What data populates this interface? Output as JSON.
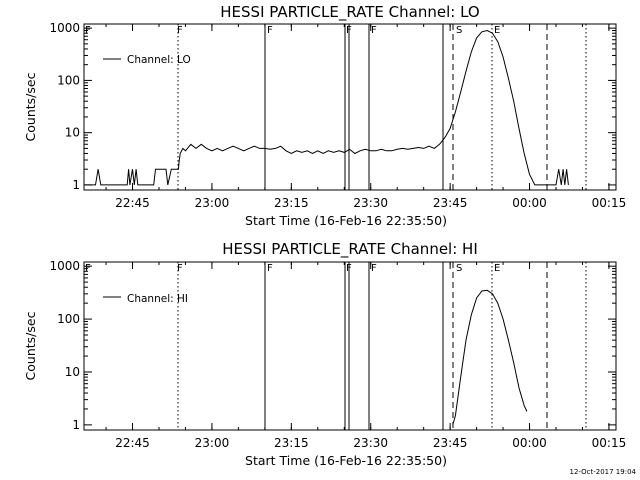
{
  "chart_data": [
    {
      "type": "line",
      "title": "HESSI PARTICLE_RATE Channel: LO",
      "xlabel": "Start Time (16-Feb-16 22:35:50)",
      "ylabel": "Counts/sec",
      "yscale": "log",
      "ylim": [
        0.8,
        1200
      ],
      "xlim_minutes_from_start": [
        0,
        100.5
      ],
      "x_tick_labels": [
        "22:45",
        "23:00",
        "23:15",
        "23:30",
        "23:45",
        "00:00",
        "00:15"
      ],
      "y_tick_labels": [
        "1",
        "10",
        "100",
        "1000"
      ],
      "legend": [
        "Channel: LO"
      ],
      "legend_position": "top-left",
      "event_markers": [
        {
          "label": "F",
          "style": "solid"
        },
        {
          "label": "F",
          "style": "solid"
        },
        {
          "label": "F",
          "style": "solid"
        },
        {
          "label": "S",
          "style": "dashed"
        },
        {
          "label": "E",
          "style": "dotted"
        }
      ],
      "series": [
        {
          "name": "Channel: LO",
          "points": [
            [
              "22:36:00",
              1
            ],
            [
              "22:37:00",
              1
            ],
            [
              "22:38:00",
              1
            ],
            [
              "22:38:30",
              2
            ],
            [
              "22:39:00",
              1
            ],
            [
              "22:44:00",
              1
            ],
            [
              "22:44:15",
              2
            ],
            [
              "22:44:30",
              1
            ],
            [
              "22:45:00",
              2
            ],
            [
              "22:45:20",
              1
            ],
            [
              "22:45:40",
              2
            ],
            [
              "22:46:00",
              1
            ],
            [
              "22:49:00",
              1
            ],
            [
              "22:49:20",
              2
            ],
            [
              "22:51:20",
              2
            ],
            [
              "22:51:40",
              1
            ],
            [
              "22:52:20",
              2
            ],
            [
              "22:53:40",
              2
            ],
            [
              "22:53:50",
              3
            ],
            [
              "22:54:00",
              4
            ],
            [
              "22:54:30",
              5
            ],
            [
              "22:55:00",
              4.5
            ],
            [
              "22:56:00",
              6
            ],
            [
              "22:57:00",
              5
            ],
            [
              "22:58:00",
              6
            ],
            [
              "22:59:00",
              5
            ],
            [
              "23:00:00",
              4.5
            ],
            [
              "23:01:00",
              5
            ],
            [
              "23:02:00",
              4.5
            ],
            [
              "23:03:00",
              5
            ],
            [
              "23:04:00",
              5.5
            ],
            [
              "23:05:00",
              5
            ],
            [
              "23:06:00",
              4.5
            ],
            [
              "23:07:00",
              5
            ],
            [
              "23:08:00",
              5.5
            ],
            [
              "23:09:00",
              5
            ],
            [
              "23:10:00",
              5
            ],
            [
              "23:11:00",
              4.8
            ],
            [
              "23:12:00",
              5
            ],
            [
              "23:13:00",
              5.5
            ],
            [
              "23:14:00",
              4.5
            ],
            [
              "23:15:00",
              4
            ],
            [
              "23:16:00",
              4.5
            ],
            [
              "23:17:00",
              4.2
            ],
            [
              "23:18:00",
              4.5
            ],
            [
              "23:19:00",
              4
            ],
            [
              "23:20:00",
              4.5
            ],
            [
              "23:21:00",
              4
            ],
            [
              "23:22:00",
              4.5
            ],
            [
              "23:23:00",
              4.2
            ],
            [
              "23:24:00",
              4.5
            ],
            [
              "23:25:00",
              4.2
            ],
            [
              "23:26:00",
              4.8
            ],
            [
              "23:27:00",
              4
            ],
            [
              "23:28:00",
              4.5
            ],
            [
              "23:29:00",
              4.8
            ],
            [
              "23:30:00",
              4.5
            ],
            [
              "23:31:00",
              4.5
            ],
            [
              "23:32:00",
              4.8
            ],
            [
              "23:33:00",
              4.5
            ],
            [
              "23:34:00",
              4.5
            ],
            [
              "23:35:00",
              4.8
            ],
            [
              "23:36:00",
              5
            ],
            [
              "23:37:00",
              4.8
            ],
            [
              "23:38:00",
              5
            ],
            [
              "23:39:00",
              5.2
            ],
            [
              "23:40:00",
              5
            ],
            [
              "23:41:00",
              5.5
            ],
            [
              "23:42:00",
              5
            ],
            [
              "23:43:00",
              6
            ],
            [
              "23:44:00",
              8
            ],
            [
              "23:45:00",
              12
            ],
            [
              "23:46:00",
              25
            ],
            [
              "23:47:00",
              60
            ],
            [
              "23:48:00",
              150
            ],
            [
              "23:49:00",
              350
            ],
            [
              "23:50:00",
              650
            ],
            [
              "23:51:00",
              850
            ],
            [
              "23:52:00",
              900
            ],
            [
              "23:53:00",
              800
            ],
            [
              "23:54:00",
              550
            ],
            [
              "23:55:00",
              280
            ],
            [
              "23:56:00",
              110
            ],
            [
              "23:57:00",
              40
            ],
            [
              "23:58:00",
              12
            ],
            [
              "23:59:00",
              4
            ],
            [
              "00:00:00",
              1.6
            ],
            [
              "00:01:00",
              1
            ],
            [
              "00:02:00",
              1
            ],
            [
              "00:05:00",
              1
            ],
            [
              "00:05:30",
              2
            ],
            [
              "00:06:00",
              1
            ],
            [
              "00:06:20",
              2
            ],
            [
              "00:06:40",
              1
            ],
            [
              "00:07:00",
              2
            ],
            [
              "00:07:20",
              1
            ]
          ]
        }
      ]
    },
    {
      "type": "line",
      "title": "HESSI PARTICLE_RATE Channel: HI",
      "xlabel": "Start Time (16-Feb-16 22:35:50)",
      "ylabel": "Counts/sec",
      "yscale": "log",
      "ylim": [
        0.8,
        1200
      ],
      "xlim_minutes_from_start": [
        0,
        100.5
      ],
      "x_tick_labels": [
        "22:45",
        "23:00",
        "23:15",
        "23:30",
        "23:45",
        "00:00",
        "00:15"
      ],
      "y_tick_labels": [
        "1",
        "10",
        "100",
        "1000"
      ],
      "legend": [
        "Channel: HI"
      ],
      "legend_position": "top-left",
      "event_markers": [
        {
          "label": "F",
          "style": "solid"
        },
        {
          "label": "F",
          "style": "solid"
        },
        {
          "label": "F",
          "style": "solid"
        },
        {
          "label": "S",
          "style": "dashed"
        },
        {
          "label": "E",
          "style": "dotted"
        }
      ],
      "series": [
        {
          "name": "Channel: HI",
          "points": [
            [
              "23:45:30",
              1
            ],
            [
              "23:46:00",
              1.5
            ],
            [
              "23:47:00",
              8
            ],
            [
              "23:48:00",
              40
            ],
            [
              "23:49:00",
              120
            ],
            [
              "23:50:00",
              250
            ],
            [
              "23:51:00",
              340
            ],
            [
              "23:52:00",
              350
            ],
            [
              "23:53:00",
              300
            ],
            [
              "23:54:00",
              200
            ],
            [
              "23:55:00",
              100
            ],
            [
              "23:56:00",
              40
            ],
            [
              "23:57:00",
              15
            ],
            [
              "23:58:00",
              5
            ],
            [
              "23:59:00",
              2.3
            ],
            [
              "23:59:30",
              1.8
            ]
          ]
        }
      ]
    }
  ],
  "footer": {
    "stamp": "12-Oct-2017 19:04"
  }
}
